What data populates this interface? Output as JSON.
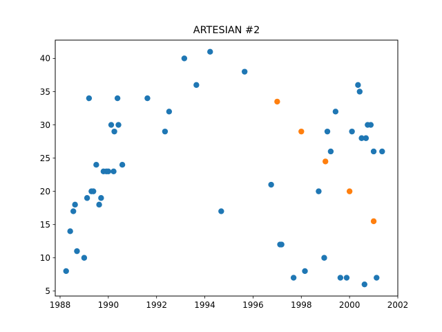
{
  "chart_data": {
    "type": "scatter",
    "title": "ARTESIAN #2",
    "xlabel": "",
    "ylabel": "",
    "xlim": [
      1987.8,
      2002
    ],
    "ylim": [
      4.25,
      42.75
    ],
    "xticks": [
      1988,
      1990,
      1992,
      1994,
      1996,
      1998,
      2000,
      2002
    ],
    "yticks": [
      5,
      10,
      15,
      20,
      25,
      30,
      35,
      40
    ],
    "grid": false,
    "colors": {
      "series_1": "#1f77b4",
      "series_2": "#ff7f0e"
    },
    "series": [
      {
        "color": "#1f77b4",
        "points": [
          [
            1988.25,
            8
          ],
          [
            1988.42,
            14
          ],
          [
            1988.55,
            17
          ],
          [
            1988.62,
            18
          ],
          [
            1988.7,
            11
          ],
          [
            1989.0,
            10
          ],
          [
            1989.12,
            19
          ],
          [
            1989.2,
            34
          ],
          [
            1989.3,
            20
          ],
          [
            1989.38,
            20
          ],
          [
            1989.5,
            24
          ],
          [
            1989.62,
            18
          ],
          [
            1989.7,
            19
          ],
          [
            1989.8,
            23
          ],
          [
            1989.92,
            23
          ],
          [
            1990.0,
            23
          ],
          [
            1990.12,
            30
          ],
          [
            1990.22,
            23
          ],
          [
            1990.25,
            29
          ],
          [
            1990.38,
            34
          ],
          [
            1990.42,
            30
          ],
          [
            1990.58,
            24
          ],
          [
            1991.62,
            34
          ],
          [
            1992.35,
            29
          ],
          [
            1992.52,
            32
          ],
          [
            1993.15,
            40
          ],
          [
            1993.65,
            36
          ],
          [
            1994.22,
            41
          ],
          [
            1994.68,
            17
          ],
          [
            1995.65,
            38
          ],
          [
            1996.75,
            21
          ],
          [
            1997.12,
            12
          ],
          [
            1997.18,
            12
          ],
          [
            1997.68,
            7
          ],
          [
            1998.15,
            8
          ],
          [
            1998.72,
            20
          ],
          [
            1998.95,
            10
          ],
          [
            1999.08,
            29
          ],
          [
            1999.22,
            26
          ],
          [
            1999.42,
            32
          ],
          [
            1999.62,
            7
          ],
          [
            1999.88,
            7
          ],
          [
            2000.1,
            29
          ],
          [
            2000.35,
            36
          ],
          [
            2000.42,
            35
          ],
          [
            2000.5,
            28
          ],
          [
            2000.62,
            6
          ],
          [
            2000.68,
            28
          ],
          [
            2000.75,
            30
          ],
          [
            2000.88,
            30
          ],
          [
            2001.0,
            26
          ],
          [
            2001.12,
            7
          ],
          [
            2001.35,
            26
          ]
        ]
      },
      {
        "color": "#ff7f0e",
        "points": [
          [
            1997.0,
            33.5
          ],
          [
            1998.0,
            29
          ],
          [
            1999.0,
            24.5
          ],
          [
            2000.0,
            20
          ],
          [
            2001.0,
            15.5
          ]
        ]
      }
    ]
  }
}
